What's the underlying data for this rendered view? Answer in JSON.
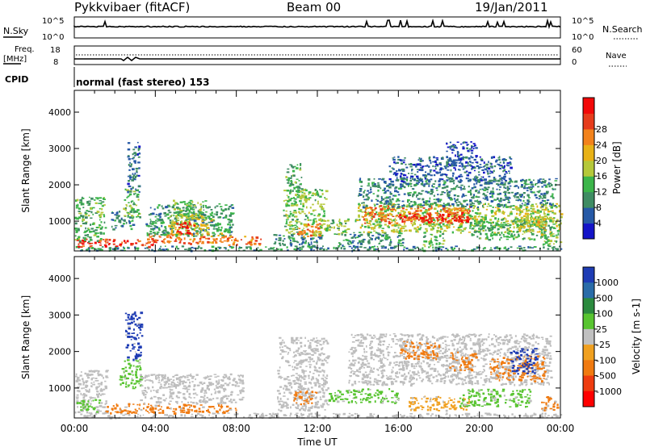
{
  "header": {
    "station": "Pykkvibaer (fitACF)",
    "beam": "Beam 00",
    "date": "19/Jan/2011"
  },
  "top_panels": {
    "nsky_label": "N.Sky",
    "nsearch_label": "N.Search",
    "nsky_ticks": [
      "10^5",
      "10^0"
    ],
    "nsearch_ticks": [
      "10^5",
      "10^0"
    ],
    "freq_label": "Freq.",
    "freq_unit": "[MHz]",
    "freq_ticks": [
      "18",
      "8"
    ],
    "nave_label": "Nave",
    "nave_ticks": [
      "60",
      "0"
    ],
    "cpid_label": "CPID",
    "cpid_text": "normal (fast stereo) 153"
  },
  "colors": {
    "scale": [
      "#1414c8",
      "#2659a6",
      "#3f8c63",
      "#3cb54a",
      "#b5c83a",
      "#e8b217",
      "#f2821c",
      "#e63c1c",
      "#f20808"
    ],
    "velocity_scale": [
      "#1e3cb4",
      "#2a6ca8",
      "#2b8a3e",
      "#58c430",
      "#c0c0c0",
      "#f0a020",
      "#f07a10",
      "#ee3c10",
      "#ff0000"
    ],
    "ground_scatter": "#bebebe"
  },
  "chart_data": [
    {
      "type": "heatmap",
      "title": "Power",
      "xlabel": "Time UT",
      "ylabel": "Slant Range [km]",
      "x_ticks": [
        "00:00",
        "04:00",
        "08:00",
        "12:00",
        "16:00",
        "20:00",
        "00:00"
      ],
      "x_range_hours": [
        0,
        24
      ],
      "y_ticks": [
        "1000",
        "2000",
        "3000",
        "4000"
      ],
      "y_range_km": [
        180,
        4600
      ],
      "colorbar": {
        "label": "Power [dB]",
        "ticks": [
          "4",
          "8",
          "12",
          "16",
          "20",
          "24",
          "28"
        ],
        "range": [
          0,
          32
        ]
      },
      "regions": [
        {
          "t": [
            0.0,
            24.0
          ],
          "r": [
            200,
            330
          ],
          "v": 9
        },
        {
          "t": [
            0.0,
            4.0
          ],
          "r": [
            300,
            520
          ],
          "v": 27
        },
        {
          "t": [
            0.0,
            1.5
          ],
          "r": [
            450,
            1700
          ],
          "v": 12
        },
        {
          "t": [
            1.8,
            2.9
          ],
          "r": [
            800,
            1300
          ],
          "v": 8
        },
        {
          "t": [
            2.4,
            3.2
          ],
          "r": [
            1100,
            1900
          ],
          "v": 13
        },
        {
          "t": [
            2.6,
            3.2
          ],
          "r": [
            1800,
            3200
          ],
          "v": 6
        },
        {
          "t": [
            3.5,
            7.5
          ],
          "r": [
            400,
            700
          ],
          "v": 24
        },
        {
          "t": [
            3.5,
            7.8
          ],
          "r": [
            600,
            1500
          ],
          "v": 10
        },
        {
          "t": [
            4.6,
            6.8
          ],
          "r": [
            650,
            1200
          ],
          "v": 18
        },
        {
          "t": [
            5.0,
            5.9
          ],
          "r": [
            650,
            1000
          ],
          "v": 29
        },
        {
          "t": [
            4.8,
            6.5
          ],
          "r": [
            1100,
            1600
          ],
          "v": 13
        },
        {
          "t": [
            7.5,
            9.2
          ],
          "r": [
            350,
            620
          ],
          "v": 23
        },
        {
          "t": [
            9.8,
            12.2
          ],
          "r": [
            320,
            680
          ],
          "v": 8
        },
        {
          "t": [
            10.3,
            12.4
          ],
          "r": [
            600,
            1900
          ],
          "v": 14
        },
        {
          "t": [
            10.4,
            11.2
          ],
          "r": [
            1800,
            2600
          ],
          "v": 11
        },
        {
          "t": [
            11.0,
            12.1
          ],
          "r": [
            600,
            950
          ],
          "v": 24
        },
        {
          "t": [
            12.2,
            13.5
          ],
          "r": [
            650,
            1100
          ],
          "v": 13
        },
        {
          "t": [
            13.0,
            16.2
          ],
          "r": [
            300,
            700
          ],
          "v": 9
        },
        {
          "t": [
            13.8,
            24.0
          ],
          "r": [
            700,
            1500
          ],
          "v": 15
        },
        {
          "t": [
            14.2,
            19.5
          ],
          "r": [
            950,
            1450
          ],
          "v": 24
        },
        {
          "t": [
            16.0,
            19.5
          ],
          "r": [
            1000,
            1250
          ],
          "v": 29
        },
        {
          "t": [
            14.0,
            23.8
          ],
          "r": [
            1400,
            2200
          ],
          "v": 8
        },
        {
          "t": [
            15.5,
            21.6
          ],
          "r": [
            2100,
            2800
          ],
          "v": 6
        },
        {
          "t": [
            18.3,
            19.8
          ],
          "r": [
            2500,
            3200
          ],
          "v": 5
        },
        {
          "t": [
            17.2,
            18.2
          ],
          "r": [
            300,
            750
          ],
          "v": 13
        },
        {
          "t": [
            19.5,
            23.5
          ],
          "r": [
            500,
            1100
          ],
          "v": 11
        },
        {
          "t": [
            21.8,
            23.2
          ],
          "r": [
            700,
            1350
          ],
          "v": 18
        },
        {
          "t": [
            23.0,
            24.0
          ],
          "r": [
            350,
            700
          ],
          "v": 14
        }
      ]
    },
    {
      "type": "heatmap",
      "title": "Velocity",
      "xlabel": "Time UT",
      "ylabel": "Slant Range [km]",
      "x_ticks": [
        "00:00",
        "04:00",
        "08:00",
        "12:00",
        "16:00",
        "20:00",
        "00:00"
      ],
      "x_range_hours": [
        0,
        24
      ],
      "y_ticks": [
        "1000",
        "2000",
        "3000",
        "4000"
      ],
      "y_range_km": [
        180,
        4600
      ],
      "colorbar": {
        "label": "Velocity [m s-1]",
        "ticks": [
          "1000",
          "500",
          "100",
          "25",
          "-25",
          "-100",
          "-500",
          "-1000"
        ]
      },
      "regions": [
        {
          "t": [
            0.0,
            24.0
          ],
          "r": [
            200,
            330
          ],
          "cls": "gs"
        },
        {
          "t": [
            0.0,
            1.6
          ],
          "r": [
            330,
            1500
          ],
          "cls": "gs"
        },
        {
          "t": [
            0.0,
            1.2
          ],
          "r": [
            350,
            700
          ],
          "cls": "green"
        },
        {
          "t": [
            2.2,
            3.3
          ],
          "r": [
            1000,
            1800
          ],
          "cls": "green"
        },
        {
          "t": [
            2.5,
            3.3
          ],
          "r": [
            1800,
            3100
          ],
          "cls": "blue"
        },
        {
          "t": [
            1.5,
            5.5
          ],
          "r": [
            330,
            600
          ],
          "cls": "orange"
        },
        {
          "t": [
            3.2,
            8.3
          ],
          "r": [
            600,
            1400
          ],
          "cls": "gs"
        },
        {
          "t": [
            5.0,
            8.0
          ],
          "r": [
            330,
            560
          ],
          "cls": "orange"
        },
        {
          "t": [
            10.0,
            12.5
          ],
          "r": [
            400,
            2400
          ],
          "cls": "gs"
        },
        {
          "t": [
            10.8,
            12.0
          ],
          "r": [
            550,
            950
          ],
          "cls": "orange"
        },
        {
          "t": [
            12.5,
            16.0
          ],
          "r": [
            600,
            1000
          ],
          "cls": "green"
        },
        {
          "t": [
            13.5,
            23.5
          ],
          "r": [
            1100,
            2500
          ],
          "cls": "gs"
        },
        {
          "t": [
            16.0,
            18.0
          ],
          "r": [
            1800,
            2300
          ],
          "cls": "orange"
        },
        {
          "t": [
            16.5,
            19.5
          ],
          "r": [
            400,
            800
          ],
          "cls": "yellow"
        },
        {
          "t": [
            18.5,
            19.8
          ],
          "r": [
            1500,
            2000
          ],
          "cls": "orange"
        },
        {
          "t": [
            19.0,
            22.5
          ],
          "r": [
            500,
            1000
          ],
          "cls": "green"
        },
        {
          "t": [
            20.5,
            23.2
          ],
          "r": [
            1200,
            1900
          ],
          "cls": "orange"
        },
        {
          "t": [
            21.5,
            22.8
          ],
          "r": [
            1400,
            2100
          ],
          "cls": "blue"
        },
        {
          "t": [
            23.0,
            24.0
          ],
          "r": [
            400,
            800
          ],
          "cls": "orange"
        }
      ]
    }
  ]
}
